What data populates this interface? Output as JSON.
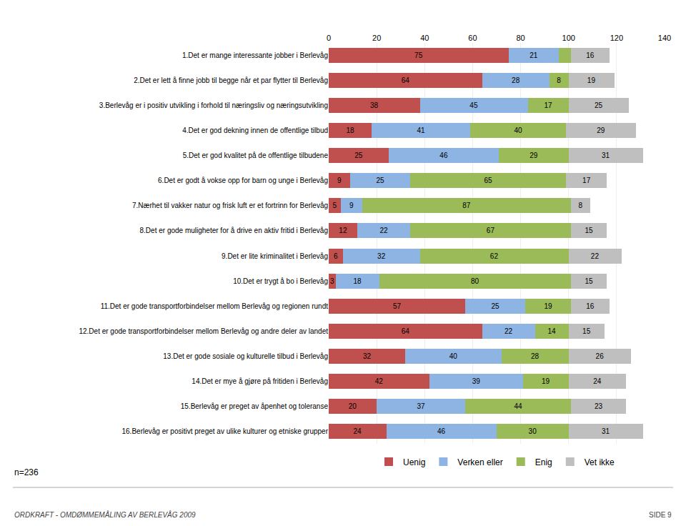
{
  "chart_data": {
    "type": "bar",
    "orientation": "horizontal",
    "stacked": true,
    "data_labels": true,
    "grid": true,
    "legend": "bottom",
    "categories": [
      "1.Det er mange interessante jobber i Berlevåg",
      "2.Det er lett å finne jobb til begge når et par flytter til Berlevåg",
      "3.Berlevåg er i positiv utvikling i forhold til næringsliv og næringsutvikling",
      "4.Det er god dekning innen de offentlige tilbud",
      "5.Det er god kvalitet på de offentlige tilbudene",
      "6.Det er godt å vokse opp for barn og unge i Berlevåg",
      "7.Nærhet til vakker natur og frisk luft er et fortrinn for Berlevåg",
      "8.Det er gode muligheter for å drive en aktiv fritid i Berlevåg",
      "9.Det er lite kriminalitet i Berlevåg",
      "10.Det er trygt å bo i Berlevåg",
      "11.Det er gode transportforbindelser mellom Berlevåg og regionen rundt",
      "12.Det er gode transportforbindelser mellom Berlevåg og andre deler av landet",
      "13.Det er gode sosiale og kulturelle tilbud i Berlevåg",
      "14.Det er mye å gjøre på fritiden i Berlevåg",
      "15.Berlevåg er preget av åpenhet og toleranse",
      "16.Berlevåg er positivt preget av ulike kulturer og etniske grupper"
    ],
    "series": [
      {
        "name": "Uenig",
        "color": "#C0504D",
        "values": [
          75,
          64,
          38,
          18,
          25,
          9,
          5,
          12,
          6,
          3,
          57,
          64,
          32,
          42,
          20,
          24
        ]
      },
      {
        "name": "Verken eller",
        "color": "#8DB4E2",
        "values": [
          21,
          28,
          45,
          41,
          46,
          25,
          9,
          22,
          32,
          18,
          25,
          22,
          40,
          39,
          37,
          46
        ]
      },
      {
        "name": "Enig",
        "color": "#9BBB59",
        "values": [
          5,
          8,
          17,
          40,
          29,
          65,
          87,
          67,
          62,
          80,
          19,
          14,
          28,
          19,
          44,
          30
        ],
        "value_labels": [
          null,
          "8",
          "17",
          "40",
          "29",
          "65",
          "87",
          "67",
          "62",
          "80",
          "19",
          "14",
          "28",
          "19",
          "44",
          "30"
        ]
      },
      {
        "name": "Vet ikke",
        "color": "#BFBFBF",
        "values": [
          16,
          19,
          25,
          29,
          31,
          17,
          8,
          15,
          22,
          15,
          16,
          15,
          26,
          24,
          23,
          31
        ]
      }
    ],
    "xlim": [
      0,
      140
    ],
    "xticks": [
      0,
      20,
      40,
      60,
      80,
      100,
      120,
      140
    ],
    "annotations": [
      "n=236",
      "ORDKRAFT - OMDØMMEMÅLING AV BERLEVÅG 2009",
      "SIDE 9"
    ]
  }
}
